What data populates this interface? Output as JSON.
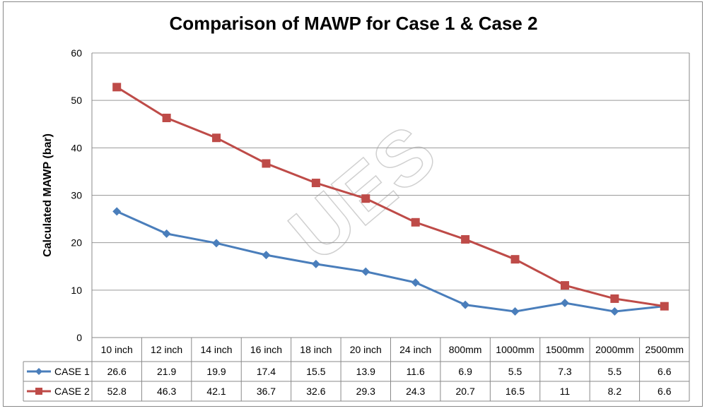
{
  "chart_data": {
    "type": "line",
    "title": "Comparison of MAWP for Case 1 & Case 2",
    "xlabel": "",
    "ylabel": "Calculated MAWP (bar)",
    "ylim": [
      0,
      60
    ],
    "yticks": [
      0,
      10,
      20,
      30,
      40,
      50,
      60
    ],
    "grid": true,
    "legend": "data-table",
    "categories": [
      "10 inch",
      "12 inch",
      "14 inch",
      "16 inch",
      "18 inch",
      "20 inch",
      "24 inch",
      "800mm",
      "1000mm",
      "1500mm",
      "2000mm",
      "2500mm"
    ],
    "series": [
      {
        "name": "CASE 1",
        "color": "#4a7ebb",
        "marker": "diamond",
        "values": [
          "26.6",
          "21.9",
          "19.9",
          "17.4",
          "15.5",
          "13.9",
          "11.6",
          "6.9",
          "5.5",
          "7.3",
          "5.5",
          "6.6"
        ]
      },
      {
        "name": "CASE 2",
        "color": "#be4b48",
        "marker": "square",
        "values": [
          "52.8",
          "46.3",
          "42.1",
          "36.7",
          "32.6",
          "29.3",
          "24.3",
          "20.7",
          "16.5",
          "11",
          "8.2",
          "6.6"
        ]
      }
    ],
    "watermark": "UES"
  }
}
